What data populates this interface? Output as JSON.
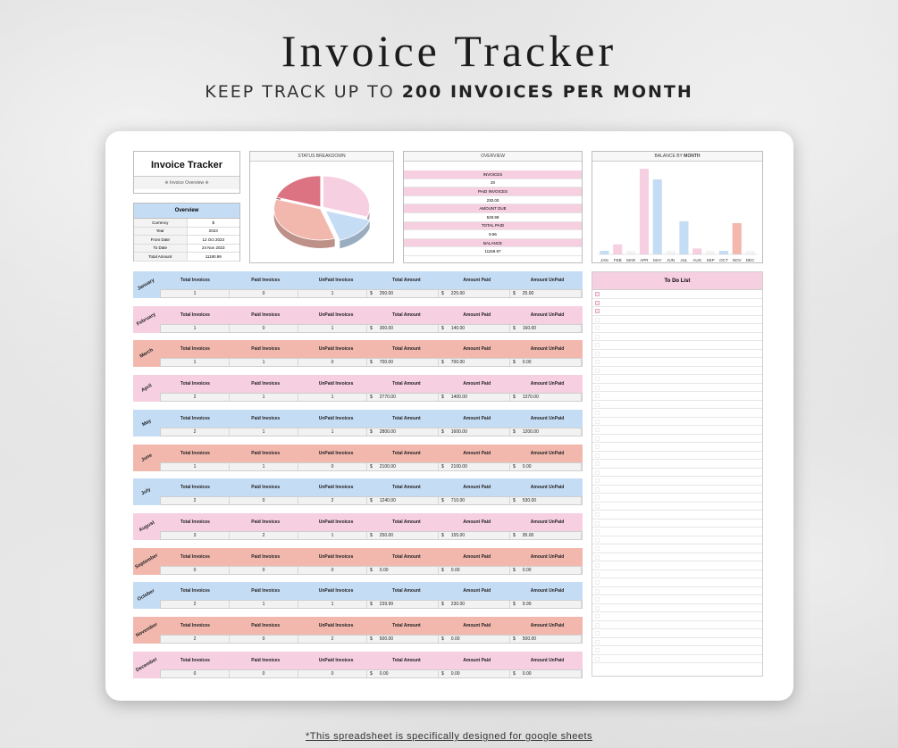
{
  "hero": {
    "title": "Invoice Tracker",
    "sub_a": "KEEP TRACK UP TO ",
    "sub_b": "200 INVOICES PER MONTH"
  },
  "footnote": "*This spreadsheet is specifically designed for google sheets",
  "sheet": {
    "title": "Invoice Tracker",
    "subtitle": "❈ Invoice Overview ❈",
    "overview": {
      "header": "Overview",
      "rows": [
        {
          "label": "Currency",
          "value": "$"
        },
        {
          "label": "Year",
          "value": "2023"
        },
        {
          "label": "From Date",
          "value": "12 Oct 2023"
        },
        {
          "label": "To Date",
          "value": "24 Nov 2023"
        },
        {
          "label": "Total Amount",
          "value": "11190.99"
        }
      ]
    },
    "status_header": "STATUS BREAKDOWN",
    "summary": {
      "header": "OVERVIEW",
      "items": [
        {
          "label": "INVOICES",
          "value": "20"
        },
        {
          "label": "PAID INVOICES",
          "value": "230.00"
        },
        {
          "label": "AMOUNT DUE",
          "value": "529.99"
        },
        {
          "label": "TOTAL PAID",
          "value": "9.96"
        },
        {
          "label": "BALANCE",
          "value": "11159.97"
        }
      ]
    },
    "balance_header_a": "BALANCE BY ",
    "balance_header_b": "MONTH",
    "col_headers": [
      "Total Invoices",
      "Paid Invoices",
      "UnPaid Invoices",
      "Total Amount",
      "Amount Paid",
      "Amount UnPaid"
    ],
    "months": [
      {
        "name": "January",
        "color": "#c5dcf5",
        "vals": [
          "1",
          "0",
          "1",
          "250.00",
          "225.00",
          "25.00"
        ]
      },
      {
        "name": "February",
        "color": "#f6cfe0",
        "vals": [
          "1",
          "0",
          "1",
          "300.00",
          "140.00",
          "160.00"
        ]
      },
      {
        "name": "March",
        "color": "#f2b8ae",
        "vals": [
          "1",
          "1",
          "0",
          "700.00",
          "700.00",
          "0.00"
        ]
      },
      {
        "name": "April",
        "color": "#f6cfe0",
        "vals": [
          "2",
          "1",
          "1",
          "2770.00",
          "1400.00",
          "1370.00"
        ]
      },
      {
        "name": "May",
        "color": "#c5dcf5",
        "vals": [
          "2",
          "1",
          "1",
          "2800.00",
          "1600.00",
          "1200.00"
        ]
      },
      {
        "name": "June",
        "color": "#f2b8ae",
        "vals": [
          "1",
          "1",
          "0",
          "2100.00",
          "2100.00",
          "0.00"
        ]
      },
      {
        "name": "July",
        "color": "#c5dcf5",
        "vals": [
          "2",
          "0",
          "2",
          "1240.00",
          "710.00",
          "530.00"
        ]
      },
      {
        "name": "August",
        "color": "#f6cfe0",
        "vals": [
          "3",
          "2",
          "1",
          "250.00",
          "155.00",
          "95.00"
        ]
      },
      {
        "name": "September",
        "color": "#f2b8ae",
        "vals": [
          "0",
          "0",
          "0",
          "0.00",
          "0.00",
          "0.00"
        ]
      },
      {
        "name": "October",
        "color": "#c5dcf5",
        "vals": [
          "2",
          "1",
          "1",
          "239.99",
          "230.00",
          "9.99"
        ]
      },
      {
        "name": "November",
        "color": "#f2b8ae",
        "vals": [
          "2",
          "0",
          "2",
          "500.00",
          "0.00",
          "500.00"
        ]
      },
      {
        "name": "December",
        "color": "#f6cfe0",
        "vals": [
          "0",
          "0",
          "0",
          "0.00",
          "0.00",
          "0.00"
        ]
      }
    ],
    "currency_symbol": "$",
    "todo_header": "To Do List",
    "todo_rows": 44,
    "todo_checked": 3
  },
  "chart_data": [
    {
      "type": "pie",
      "title": "STATUS BREAKDOWN",
      "slices": [
        {
          "value": 30,
          "color": "#f6cfe0"
        },
        {
          "value": 15,
          "color": "#c5dcf5"
        },
        {
          "value": 35,
          "color": "#f2b8ae"
        },
        {
          "value": 20,
          "color": "#db7383"
        }
      ]
    },
    {
      "type": "bar",
      "title": "BALANCE BY MONTH",
      "categories": [
        "JAN",
        "FEB",
        "MAR",
        "APR",
        "MAY",
        "JUN",
        "JUL",
        "AUG",
        "SEP",
        "OCT",
        "NOV",
        "DEC"
      ],
      "values": [
        25,
        160,
        0,
        1370,
        1200,
        0,
        530,
        95,
        0,
        9.99,
        500,
        0
      ],
      "colors": [
        "#c5dcf5",
        "#f6cfe0",
        "#f2b8ae",
        "#f6cfe0",
        "#c5dcf5",
        "#f2b8ae",
        "#c5dcf5",
        "#f6cfe0",
        "#f2b8ae",
        "#c5dcf5",
        "#f2b8ae",
        "#f6cfe0"
      ],
      "ylim": [
        0,
        1400
      ],
      "grid": false
    }
  ]
}
